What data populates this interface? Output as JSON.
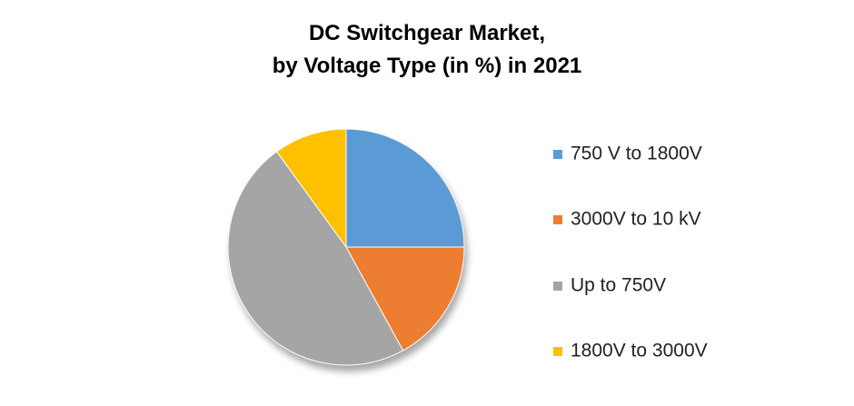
{
  "chart_data": {
    "type": "pie",
    "title": [
      "DC Switchgear Market,",
      "by Voltage Type (in %) in 2021"
    ],
    "categories": [
      "750 V to 1800V",
      "3000V to 10 kV",
      "Up to 750V",
      "1800V to 3000V"
    ],
    "values": [
      25,
      17,
      48,
      10
    ],
    "colors": [
      "#5b9bd5",
      "#ed7d31",
      "#a5a5a5",
      "#ffc000"
    ],
    "legend": "right"
  }
}
